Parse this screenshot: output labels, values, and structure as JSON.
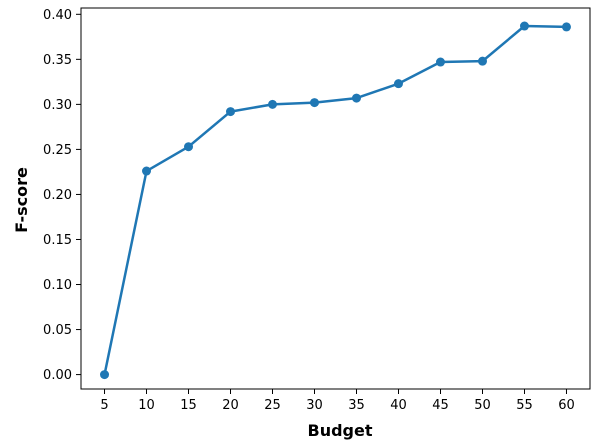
{
  "chart_data": {
    "type": "line",
    "title": "",
    "xlabel": "Budget",
    "ylabel": "F-score",
    "x": [
      5,
      10,
      15,
      20,
      25,
      30,
      35,
      40,
      45,
      50,
      55,
      60
    ],
    "x_tick_labels": [
      "5",
      "10",
      "15",
      "20",
      "25",
      "30",
      "35",
      "40",
      "45",
      "50",
      "55",
      "60"
    ],
    "y_tick_labels": [
      "0.00",
      "0.05",
      "0.10",
      "0.15",
      "0.20",
      "0.25",
      "0.30",
      "0.35",
      "0.40"
    ],
    "y_ticks": [
      0.0,
      0.05,
      0.1,
      0.15,
      0.2,
      0.25,
      0.3,
      0.35,
      0.4
    ],
    "ylim": [
      -0.016,
      0.407
    ],
    "xlim": [
      2.2,
      62.8
    ],
    "series": [
      {
        "values": [
          0.0,
          0.226,
          0.253,
          0.292,
          0.3,
          0.302,
          0.307,
          0.323,
          0.347,
          0.348,
          0.387,
          0.386
        ],
        "color": "#1f77b4"
      }
    ],
    "grid": false,
    "legend": "none"
  }
}
